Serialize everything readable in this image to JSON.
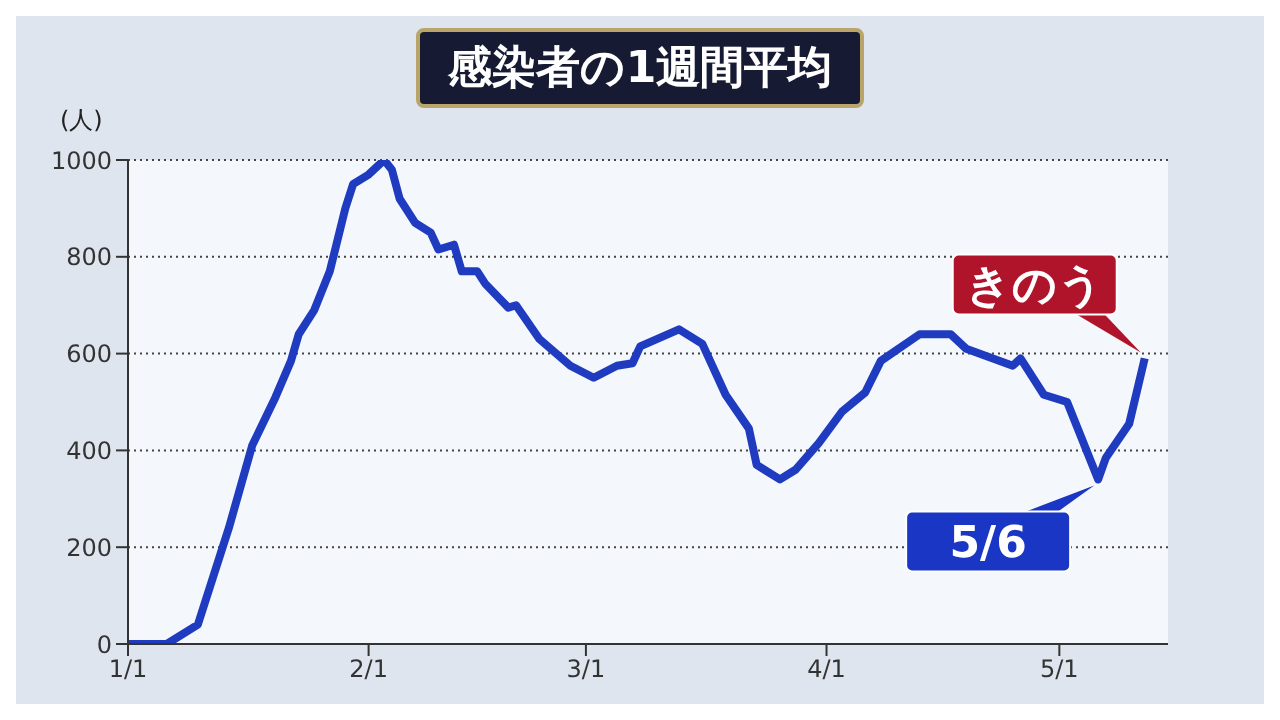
{
  "chart_data": {
    "type": "line",
    "title": "感染者の1週間平均",
    "ylabel": "(人)",
    "x": [
      "--01-01",
      "--01-06",
      "--01-10",
      "--01-14",
      "--01-17",
      "--01-20",
      "--01-22",
      "--01-23",
      "--01-25",
      "--01-27",
      "--01-29",
      "--01-30",
      "--02-01",
      "--02-03",
      "--02-04",
      "--02-05",
      "--02-07",
      "--02-09",
      "--02-10",
      "--02-12",
      "--02-13",
      "--02-15",
      "--02-16",
      "--02-19",
      "--02-20",
      "--02-23",
      "--02-27",
      "--03-02",
      "--03-05",
      "--03-07",
      "--03-08",
      "--03-13",
      "--03-16",
      "--03-19",
      "--03-22",
      "--03-23",
      "--03-26",
      "--03-28",
      "--03-31",
      "--04-03",
      "--04-06",
      "--04-08",
      "--04-13",
      "--04-17",
      "--04-19",
      "--04-25",
      "--04-26",
      "--04-29",
      "--05-02",
      "--05-06",
      "--05-07",
      "--05-10",
      "--05-12"
    ],
    "series": [
      {
        "color": "#1f3cc0",
        "values": [
          0,
          0,
          40,
          240,
          410,
          510,
          585,
          640,
          690,
          770,
          900,
          950,
          970,
          1000,
          980,
          920,
          870,
          850,
          815,
          825,
          770,
          770,
          745,
          695,
          700,
          630,
          575,
          550,
          575,
          580,
          615,
          650,
          620,
          515,
          445,
          370,
          340,
          360,
          415,
          480,
          520,
          585,
          640,
          640,
          610,
          575,
          590,
          515,
          500,
          340,
          385,
          455,
          590
        ]
      }
    ],
    "xlim": [
      "--01-01",
      "--05-15"
    ],
    "xticks": [
      {
        "value": "--01-01",
        "label": "1/1"
      },
      {
        "value": "--02-01",
        "label": "2/1"
      },
      {
        "value": "--03-01",
        "label": "3/1"
      },
      {
        "value": "--04-01",
        "label": "4/1"
      },
      {
        "value": "--05-01",
        "label": "5/1"
      }
    ],
    "ylim": [
      0,
      1000
    ],
    "yticks": [
      0,
      200,
      400,
      600,
      800,
      1000
    ],
    "grid": "y",
    "marker": "none",
    "line_style": "solid",
    "annotations": [
      {
        "text": "きのう",
        "x": "--05-12",
        "y": 590
      },
      {
        "text": "5/6",
        "x": "--05-06",
        "y": 340
      }
    ]
  }
}
